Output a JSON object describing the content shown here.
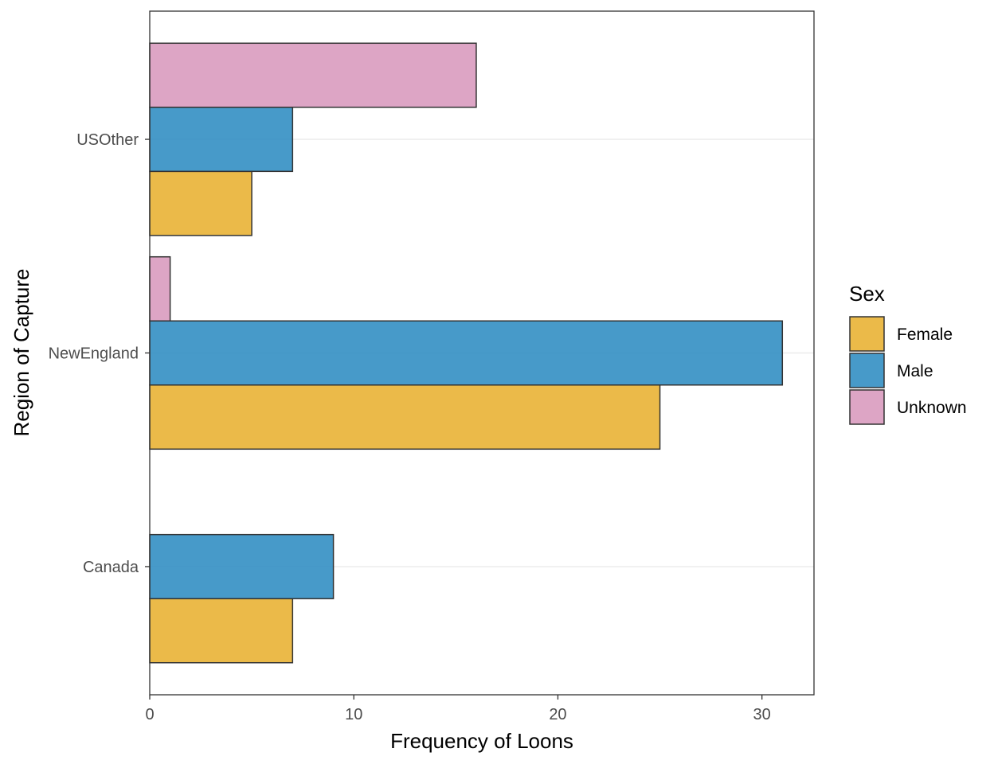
{
  "chart_data": {
    "type": "bar",
    "orientation": "horizontal",
    "categories": [
      "USOther",
      "NewEngland",
      "Canada"
    ],
    "series": [
      {
        "name": "Female",
        "color": "#E8B130",
        "values": [
          5,
          25,
          7
        ]
      },
      {
        "name": "Male",
        "color": "#2E8CC2",
        "values": [
          7,
          31,
          9
        ]
      },
      {
        "name": "Unknown",
        "color": "#D898BD",
        "values": [
          16,
          1,
          null
        ]
      }
    ],
    "xlabel": "Frequency of Loons",
    "ylabel": "Region of Capture",
    "xlim": [
      0,
      32.55
    ],
    "xticks": [
      0,
      10,
      20,
      30
    ],
    "grid": "horizontal major only",
    "legend": {
      "title": "Sex",
      "placement": "right"
    },
    "bar_outline_color": "#333333"
  }
}
